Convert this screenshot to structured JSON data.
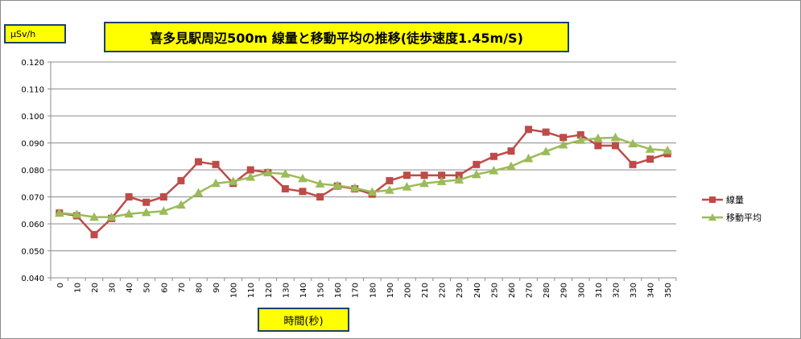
{
  "chart_data": {
    "type": "line",
    "title": "喜多見駅周辺500m  線量と移動平均の推移(徒歩速度1.45m/S)",
    "ylabel": "μSv/h",
    "xlabel": "時間(秒)",
    "ylim": [
      0.04,
      0.12
    ],
    "yticks": [
      "0.040",
      "0.050",
      "0.060",
      "0.070",
      "0.080",
      "0.090",
      "0.100",
      "0.110",
      "0.120"
    ],
    "categories": [
      "0",
      "10",
      "20",
      "30",
      "40",
      "50",
      "60",
      "70",
      "80",
      "90",
      "100",
      "110",
      "120",
      "130",
      "140",
      "150",
      "160",
      "170",
      "180",
      "190",
      "200",
      "210",
      "220",
      "230",
      "240",
      "250",
      "260",
      "270",
      "280",
      "290",
      "300",
      "310",
      "320",
      "330",
      "340",
      "350"
    ],
    "grid": "horizontal",
    "legend_position": "right",
    "series": [
      {
        "name": "線量",
        "color": "#be4b48",
        "marker": "square",
        "values": [
          0.064,
          0.063,
          0.056,
          0.062,
          0.07,
          0.068,
          0.07,
          0.076,
          0.083,
          0.082,
          0.075,
          0.08,
          0.079,
          0.073,
          0.072,
          0.07,
          0.074,
          0.073,
          0.071,
          0.076,
          0.078,
          0.078,
          0.078,
          0.078,
          0.082,
          0.085,
          0.087,
          0.095,
          0.094,
          0.092,
          0.093,
          0.089,
          0.089,
          0.082,
          0.084,
          0.086
        ]
      },
      {
        "name": "移動平均",
        "color": "#9bbb59",
        "marker": "triangle",
        "values": [
          0.064,
          0.0635,
          0.0625,
          0.0625,
          0.0637,
          0.0642,
          0.0647,
          0.067,
          0.0715,
          0.075,
          0.0757,
          0.0773,
          0.079,
          0.0785,
          0.0768,
          0.0748,
          0.0742,
          0.0733,
          0.0718,
          0.0725,
          0.0737,
          0.075,
          0.0757,
          0.0763,
          0.0783,
          0.0797,
          0.0813,
          0.0842,
          0.0868,
          0.0893,
          0.091,
          0.0917,
          0.092,
          0.0897,
          0.0877,
          0.0872
        ]
      }
    ]
  }
}
